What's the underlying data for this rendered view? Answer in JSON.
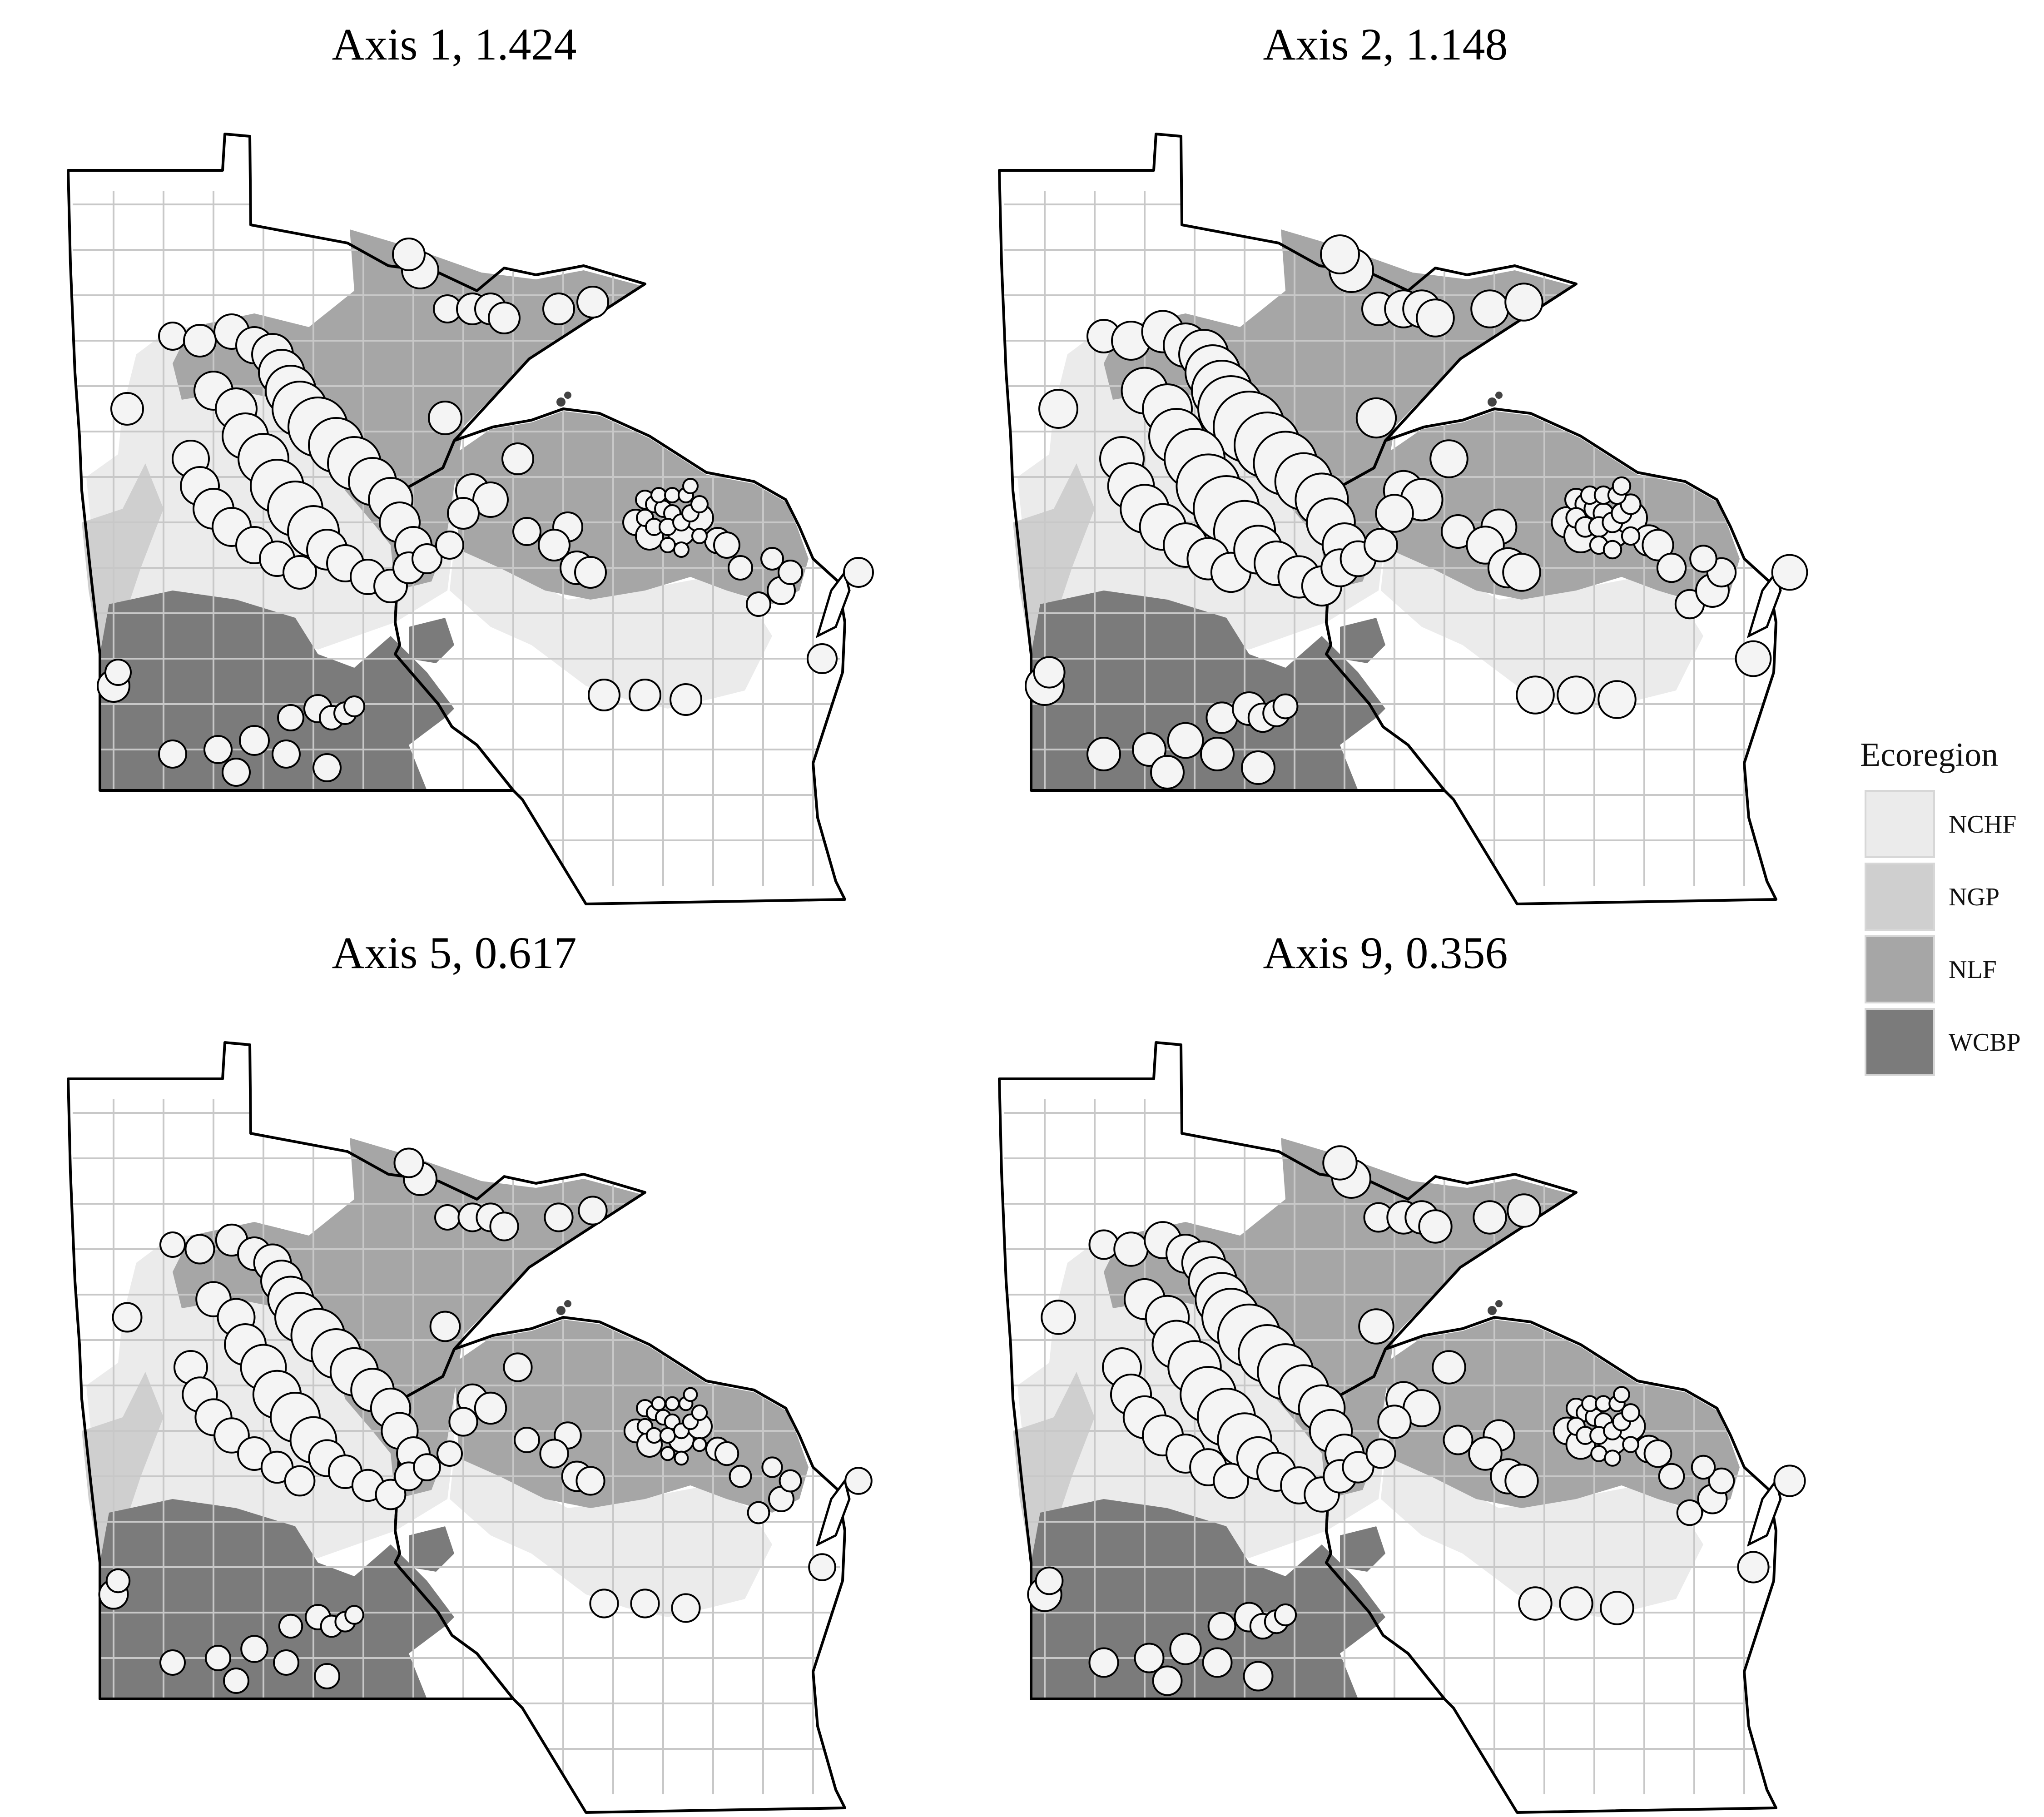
{
  "panels": [
    {
      "title": "Axis 1, 1.424",
      "scale": 1.0
    },
    {
      "title": "Axis 2, 1.148",
      "scale": 1.2
    },
    {
      "title": "Axis 5, 0.617",
      "scale": 0.9
    },
    {
      "title": "Axis 9, 0.356",
      "scale": 1.05
    }
  ],
  "legend": {
    "title": "Ecoregion",
    "items": [
      {
        "label": "NCHF",
        "color": "#ebebeb"
      },
      {
        "label": "NGP",
        "color": "#cfcfcf"
      },
      {
        "label": "NLF",
        "color": "#a6a6a6"
      },
      {
        "label": "WCBP",
        "color": "#7b7b7b"
      }
    ]
  }
}
